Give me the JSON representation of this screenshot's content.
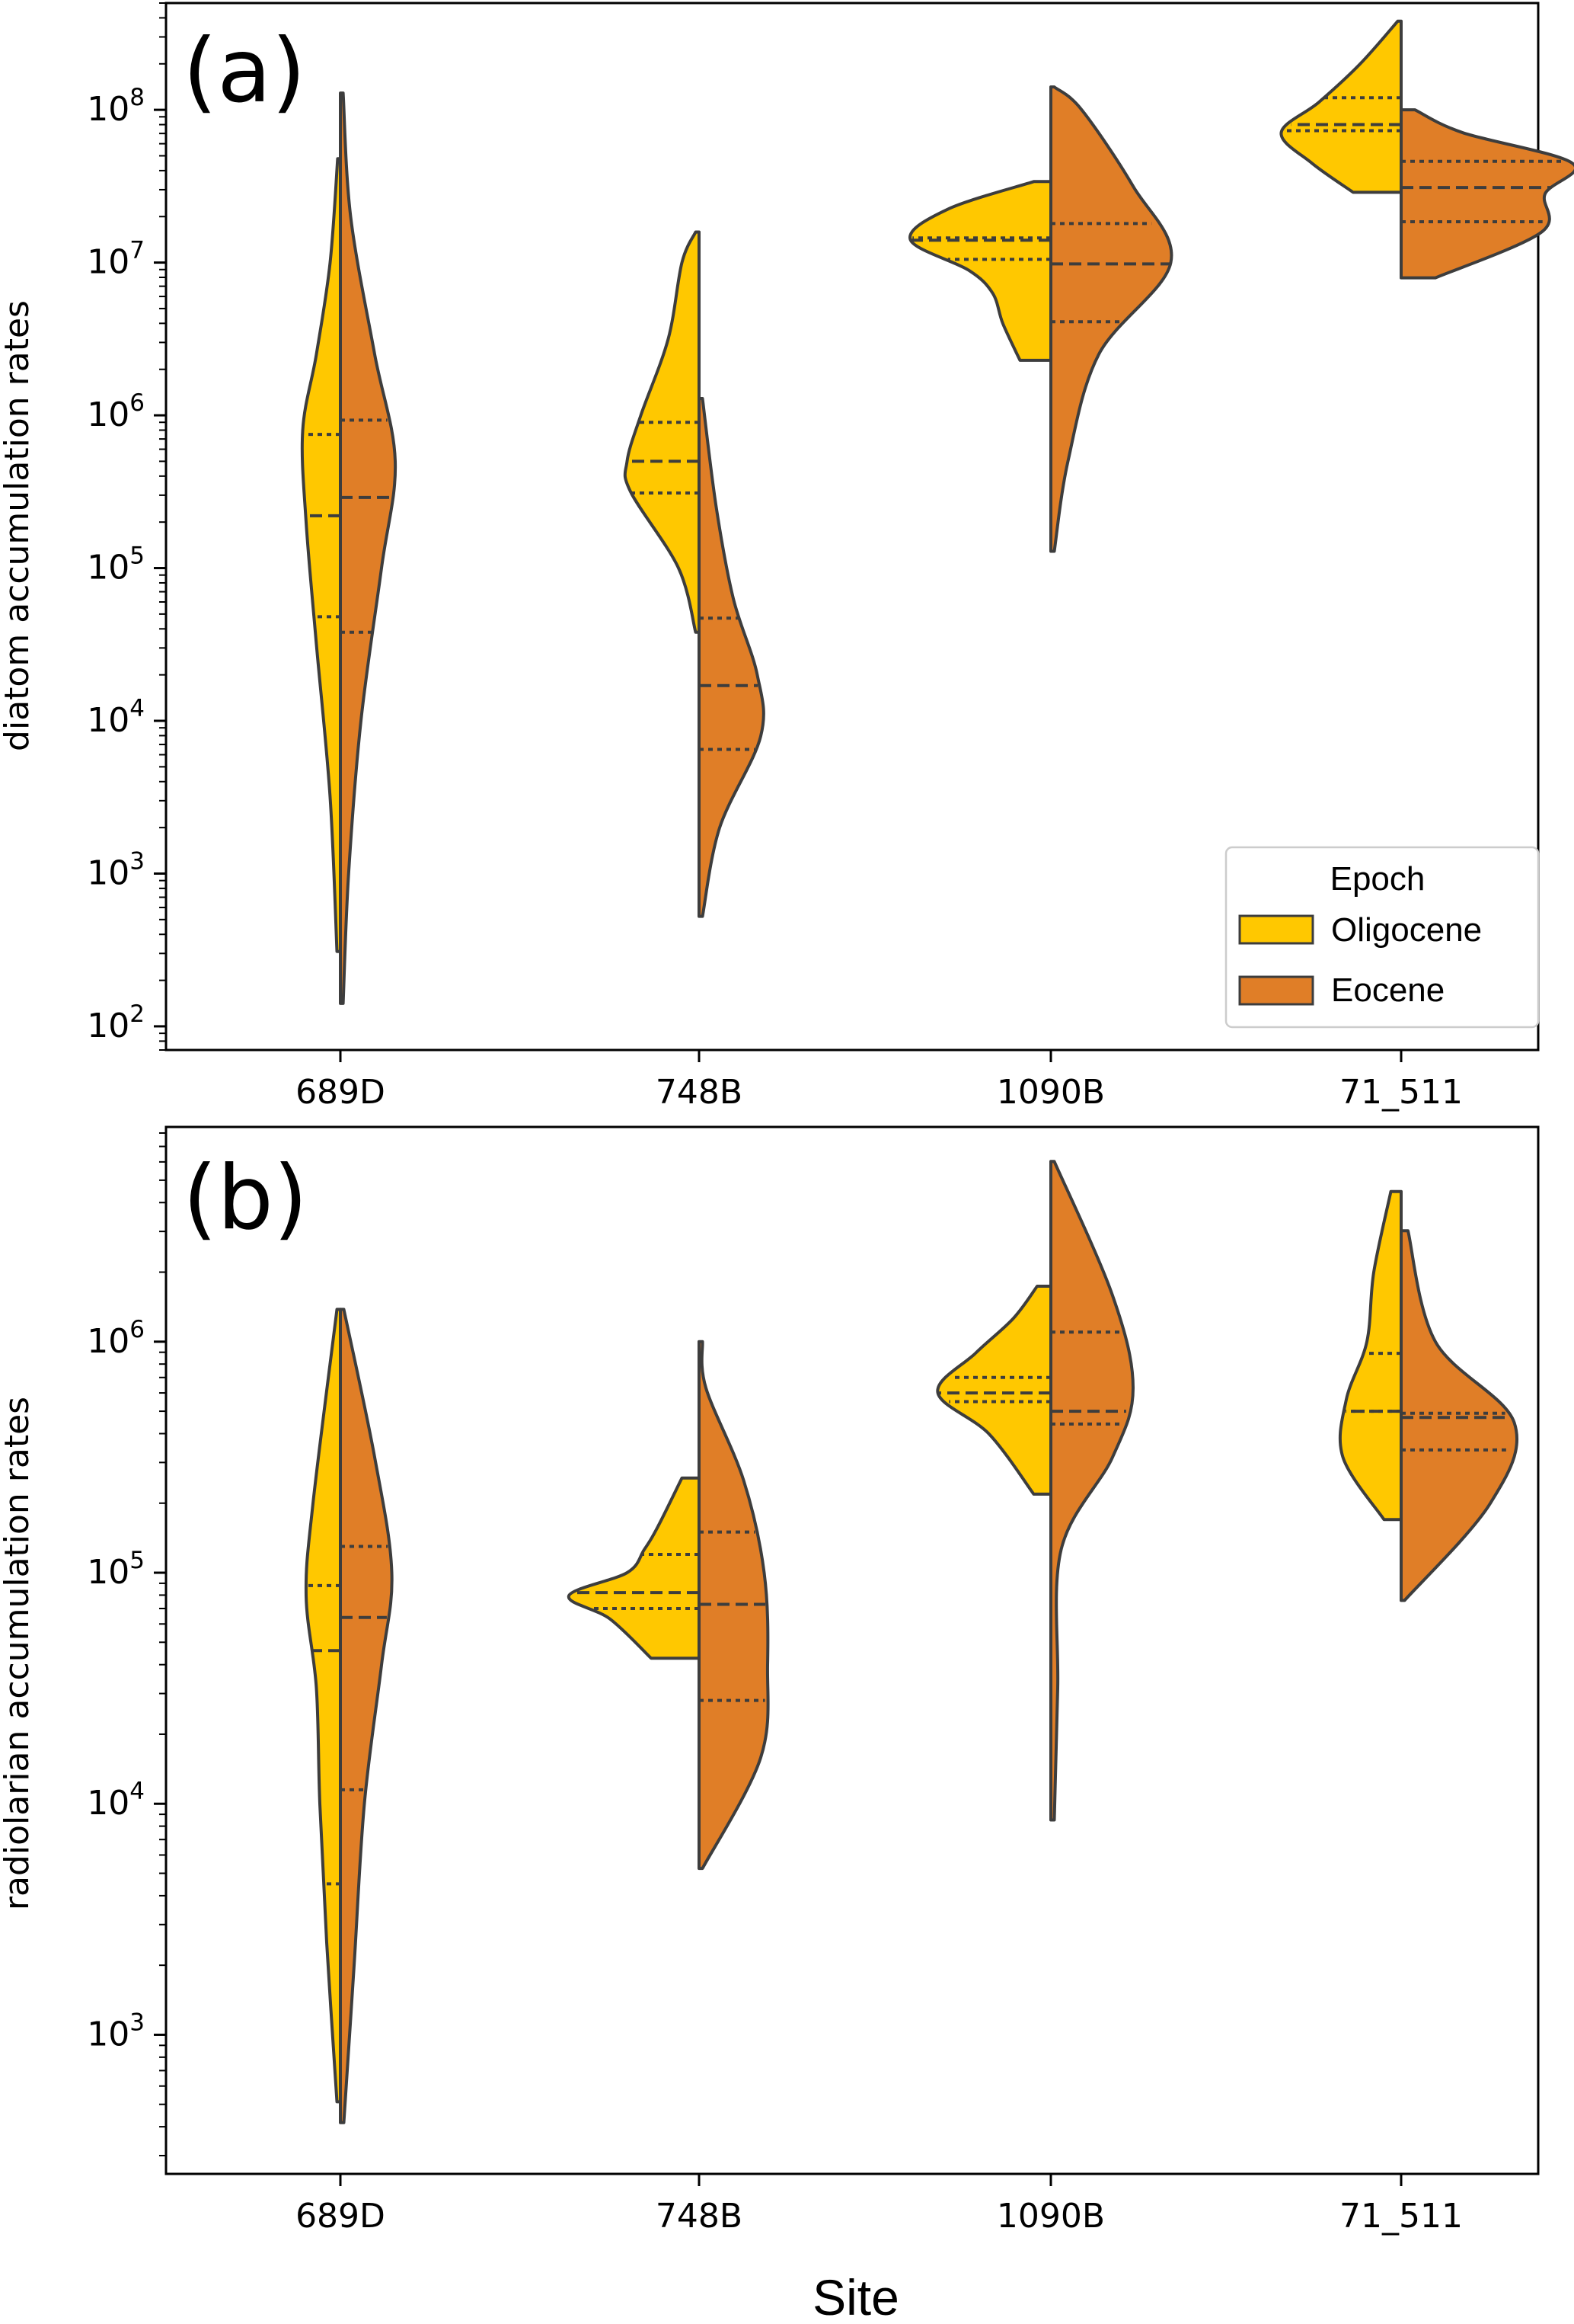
{
  "figure": {
    "xlabel": "Site"
  },
  "colors": {
    "oligocene": "#FFC800",
    "eocene": "#E07E27",
    "outline": "#3d3d3d",
    "axes": "#000000"
  },
  "legend": {
    "title": "Epoch",
    "entries": [
      "Oligocene",
      "Eocene"
    ],
    "location": "lower right of panel (a)"
  },
  "chart_data": [
    {
      "type": "violin",
      "panel_label": "(a)",
      "ylabel": "diatom accumulation rates",
      "yscale": "log",
      "ylim": [
        70,
        500000000
      ],
      "yticks": [
        {
          "base": "10",
          "exp": "2",
          "value": 100
        },
        {
          "base": "10",
          "exp": "3",
          "value": 1000
        },
        {
          "base": "10",
          "exp": "4",
          "value": 10000
        },
        {
          "base": "10",
          "exp": "5",
          "value": 100000
        },
        {
          "base": "10",
          "exp": "6",
          "value": 1000000
        },
        {
          "base": "10",
          "exp": "7",
          "value": 10000000
        },
        {
          "base": "10",
          "exp": "8",
          "value": 100000000
        }
      ],
      "categories": [
        "689D",
        "748B",
        "1090B",
        "71_511"
      ],
      "series": [
        {
          "name": "Oligocene",
          "side": "left",
          "violins": [
            {
              "range": [
                310,
                48000000
              ],
              "quartiles": [
                48000,
                220000,
                750000
              ],
              "shape": [
                [
                  2.49,
                  0.05
                ],
                [
                  3.5,
                  0.15
                ],
                [
                  4.5,
                  0.35
                ],
                [
                  5.3,
                  0.5
                ],
                [
                  5.9,
                  0.55
                ],
                [
                  6.4,
                  0.35
                ],
                [
                  7.0,
                  0.15
                ],
                [
                  7.68,
                  0.04
                ]
              ]
            },
            {
              "range": [
                38000,
                16000000
              ],
              "quartiles": [
                310000,
                500000,
                900000
              ],
              "shape": [
                [
                  4.58,
                  0.05
                ],
                [
                  5.0,
                  0.3
                ],
                [
                  5.5,
                  1.0
                ],
                [
                  5.7,
                  1.05
                ],
                [
                  6.0,
                  0.85
                ],
                [
                  6.5,
                  0.45
                ],
                [
                  7.0,
                  0.25
                ],
                [
                  7.2,
                  0.05
                ]
              ]
            },
            {
              "range": [
                2300000,
                34000000
              ],
              "quartiles": [
                10500000,
                14000000,
                14500000
              ],
              "shape": [
                [
                  6.36,
                  0.45
                ],
                [
                  6.6,
                  0.7
                ],
                [
                  6.8,
                  0.85
                ],
                [
                  6.95,
                  1.2
                ],
                [
                  7.15,
                  2.05
                ],
                [
                  7.35,
                  1.5
                ],
                [
                  7.53,
                  0.25
                ]
              ]
            },
            {
              "range": [
                29000000,
                380000000
              ],
              "quartiles": [
                73000000,
                80000000,
                120000000
              ],
              "shape": [
                [
                  7.46,
                  0.7
                ],
                [
                  7.65,
                  1.3
                ],
                [
                  7.85,
                  1.75
                ],
                [
                  8.05,
                  1.2
                ],
                [
                  8.3,
                  0.6
                ],
                [
                  8.58,
                  0.05
                ]
              ]
            }
          ]
        },
        {
          "name": "Eocene",
          "side": "right",
          "violins": [
            {
              "range": [
                140,
                130000000
              ],
              "quartiles": [
                38000,
                290000,
                930000
              ],
              "shape": [
                [
                  2.15,
                  0.04
                ],
                [
                  3.0,
                  0.12
                ],
                [
                  4.0,
                  0.3
                ],
                [
                  5.0,
                  0.6
                ],
                [
                  5.7,
                  0.8
                ],
                [
                  6.4,
                  0.5
                ],
                [
                  7.3,
                  0.15
                ],
                [
                  8.11,
                  0.04
                ]
              ]
            },
            {
              "range": [
                520,
                1300000
              ],
              "quartiles": [
                6500,
                17000,
                47000
              ],
              "shape": [
                [
                  2.72,
                  0.05
                ],
                [
                  3.3,
                  0.3
                ],
                [
                  3.9,
                  0.9
                ],
                [
                  4.3,
                  0.85
                ],
                [
                  4.8,
                  0.5
                ],
                [
                  5.4,
                  0.25
                ],
                [
                  6.11,
                  0.05
                ]
              ]
            },
            {
              "range": [
                130000,
                140000000
              ],
              "quartiles": [
                4100000,
                9800000,
                18000000
              ],
              "shape": [
                [
                  5.11,
                  0.05
                ],
                [
                  5.7,
                  0.25
                ],
                [
                  6.4,
                  0.7
                ],
                [
                  7.0,
                  1.75
                ],
                [
                  7.5,
                  1.2
                ],
                [
                  8.0,
                  0.45
                ],
                [
                  8.15,
                  0.05
                ]
              ]
            },
            {
              "range": [
                8000000,
                100000000
              ],
              "quartiles": [
                18500000,
                31000000,
                46000000
              ],
              "shape": [
                [
                  6.9,
                  0.5
                ],
                [
                  7.2,
                  2.05
                ],
                [
                  7.45,
                  2.1
                ],
                [
                  7.65,
                  2.5
                ],
                [
                  7.85,
                  0.9
                ],
                [
                  8.0,
                  0.2
                ]
              ]
            }
          ]
        }
      ]
    },
    {
      "type": "violin",
      "panel_label": "(b)",
      "ylabel": "radiolarian accumulation rates",
      "yscale": "log",
      "ylim": [
        250,
        8500000
      ],
      "yticks": [
        {
          "base": "10",
          "exp": "3",
          "value": 1000
        },
        {
          "base": "10",
          "exp": "4",
          "value": 10000
        },
        {
          "base": "10",
          "exp": "5",
          "value": 100000
        },
        {
          "base": "10",
          "exp": "6",
          "value": 1000000
        }
      ],
      "categories": [
        "689D",
        "748B",
        "1090B",
        "71_511"
      ],
      "series": [
        {
          "name": "Oligocene",
          "side": "left",
          "violins": [
            {
              "range": [
                520,
                1380000
              ],
              "quartiles": [
                4500,
                46000,
                88000
              ],
              "shape": [
                [
                  2.71,
                  0.05
                ],
                [
                  3.4,
                  0.2
                ],
                [
                  4.0,
                  0.3
                ],
                [
                  4.5,
                  0.35
                ],
                [
                  4.9,
                  0.5
                ],
                [
                  5.3,
                  0.4
                ],
                [
                  6.14,
                  0.05
                ]
              ]
            },
            {
              "range": [
                43000,
                260000
              ],
              "quartiles": [
                70000,
                82000,
                120000
              ],
              "shape": [
                [
                  4.63,
                  0.7
                ],
                [
                  4.8,
                  1.3
                ],
                [
                  4.9,
                  1.9
                ],
                [
                  5.0,
                  1.05
                ],
                [
                  5.1,
                  0.8
                ],
                [
                  5.2,
                  0.6
                ],
                [
                  5.41,
                  0.25
                ]
              ]
            },
            {
              "range": [
                220000,
                1750000
              ],
              "quartiles": [
                550000,
                600000,
                700000
              ],
              "shape": [
                [
                  5.34,
                  0.25
                ],
                [
                  5.6,
                  0.9
                ],
                [
                  5.78,
                  1.65
                ],
                [
                  5.95,
                  1.1
                ],
                [
                  6.1,
                  0.55
                ],
                [
                  6.24,
                  0.2
                ]
              ]
            },
            {
              "range": [
                170000,
                4500000
              ],
              "quartiles": [
                500000,
                500000,
                890000
              ],
              "shape": [
                [
                  5.23,
                  0.25
                ],
                [
                  5.5,
                  0.85
                ],
                [
                  5.75,
                  0.8
                ],
                [
                  6.0,
                  0.5
                ],
                [
                  6.3,
                  0.4
                ],
                [
                  6.65,
                  0.15
                ]
              ]
            }
          ]
        },
        {
          "name": "Eocene",
          "side": "right",
          "violins": [
            {
              "range": [
                420,
                1380000
              ],
              "quartiles": [
                11500,
                64000,
                130000
              ],
              "shape": [
                [
                  2.62,
                  0.05
                ],
                [
                  3.3,
                  0.2
                ],
                [
                  4.0,
                  0.35
                ],
                [
                  4.6,
                  0.6
                ],
                [
                  5.0,
                  0.75
                ],
                [
                  5.5,
                  0.5
                ],
                [
                  6.14,
                  0.05
                ]
              ]
            },
            {
              "range": [
                5200,
                1000000
              ],
              "quartiles": [
                28000,
                73000,
                150000
              ],
              "shape": [
                [
                  3.72,
                  0.05
                ],
                [
                  4.2,
                  0.9
                ],
                [
                  4.6,
                  1.0
                ],
                [
                  5.0,
                  0.95
                ],
                [
                  5.4,
                  0.65
                ],
                [
                  5.8,
                  0.1
                ],
                [
                  6.0,
                  0.05
                ]
              ]
            },
            {
              "range": [
                8500,
                6000000
              ],
              "quartiles": [
                440000,
                500000,
                1100000
              ],
              "shape": [
                [
                  3.93,
                  0.05
                ],
                [
                  4.5,
                  0.1
                ],
                [
                  5.1,
                  0.15
                ],
                [
                  5.5,
                  0.9
                ],
                [
                  5.8,
                  1.2
                ],
                [
                  6.2,
                  0.9
                ],
                [
                  6.78,
                  0.05
                ]
              ]
            },
            {
              "range": [
                75000,
                3000000
              ],
              "quartiles": [
                340000,
                470000,
                490000
              ],
              "shape": [
                [
                  4.88,
                  0.05
                ],
                [
                  5.3,
                  1.3
                ],
                [
                  5.65,
                  1.65
                ],
                [
                  6.0,
                  0.5
                ],
                [
                  6.48,
                  0.1
                ]
              ]
            }
          ]
        }
      ]
    }
  ]
}
